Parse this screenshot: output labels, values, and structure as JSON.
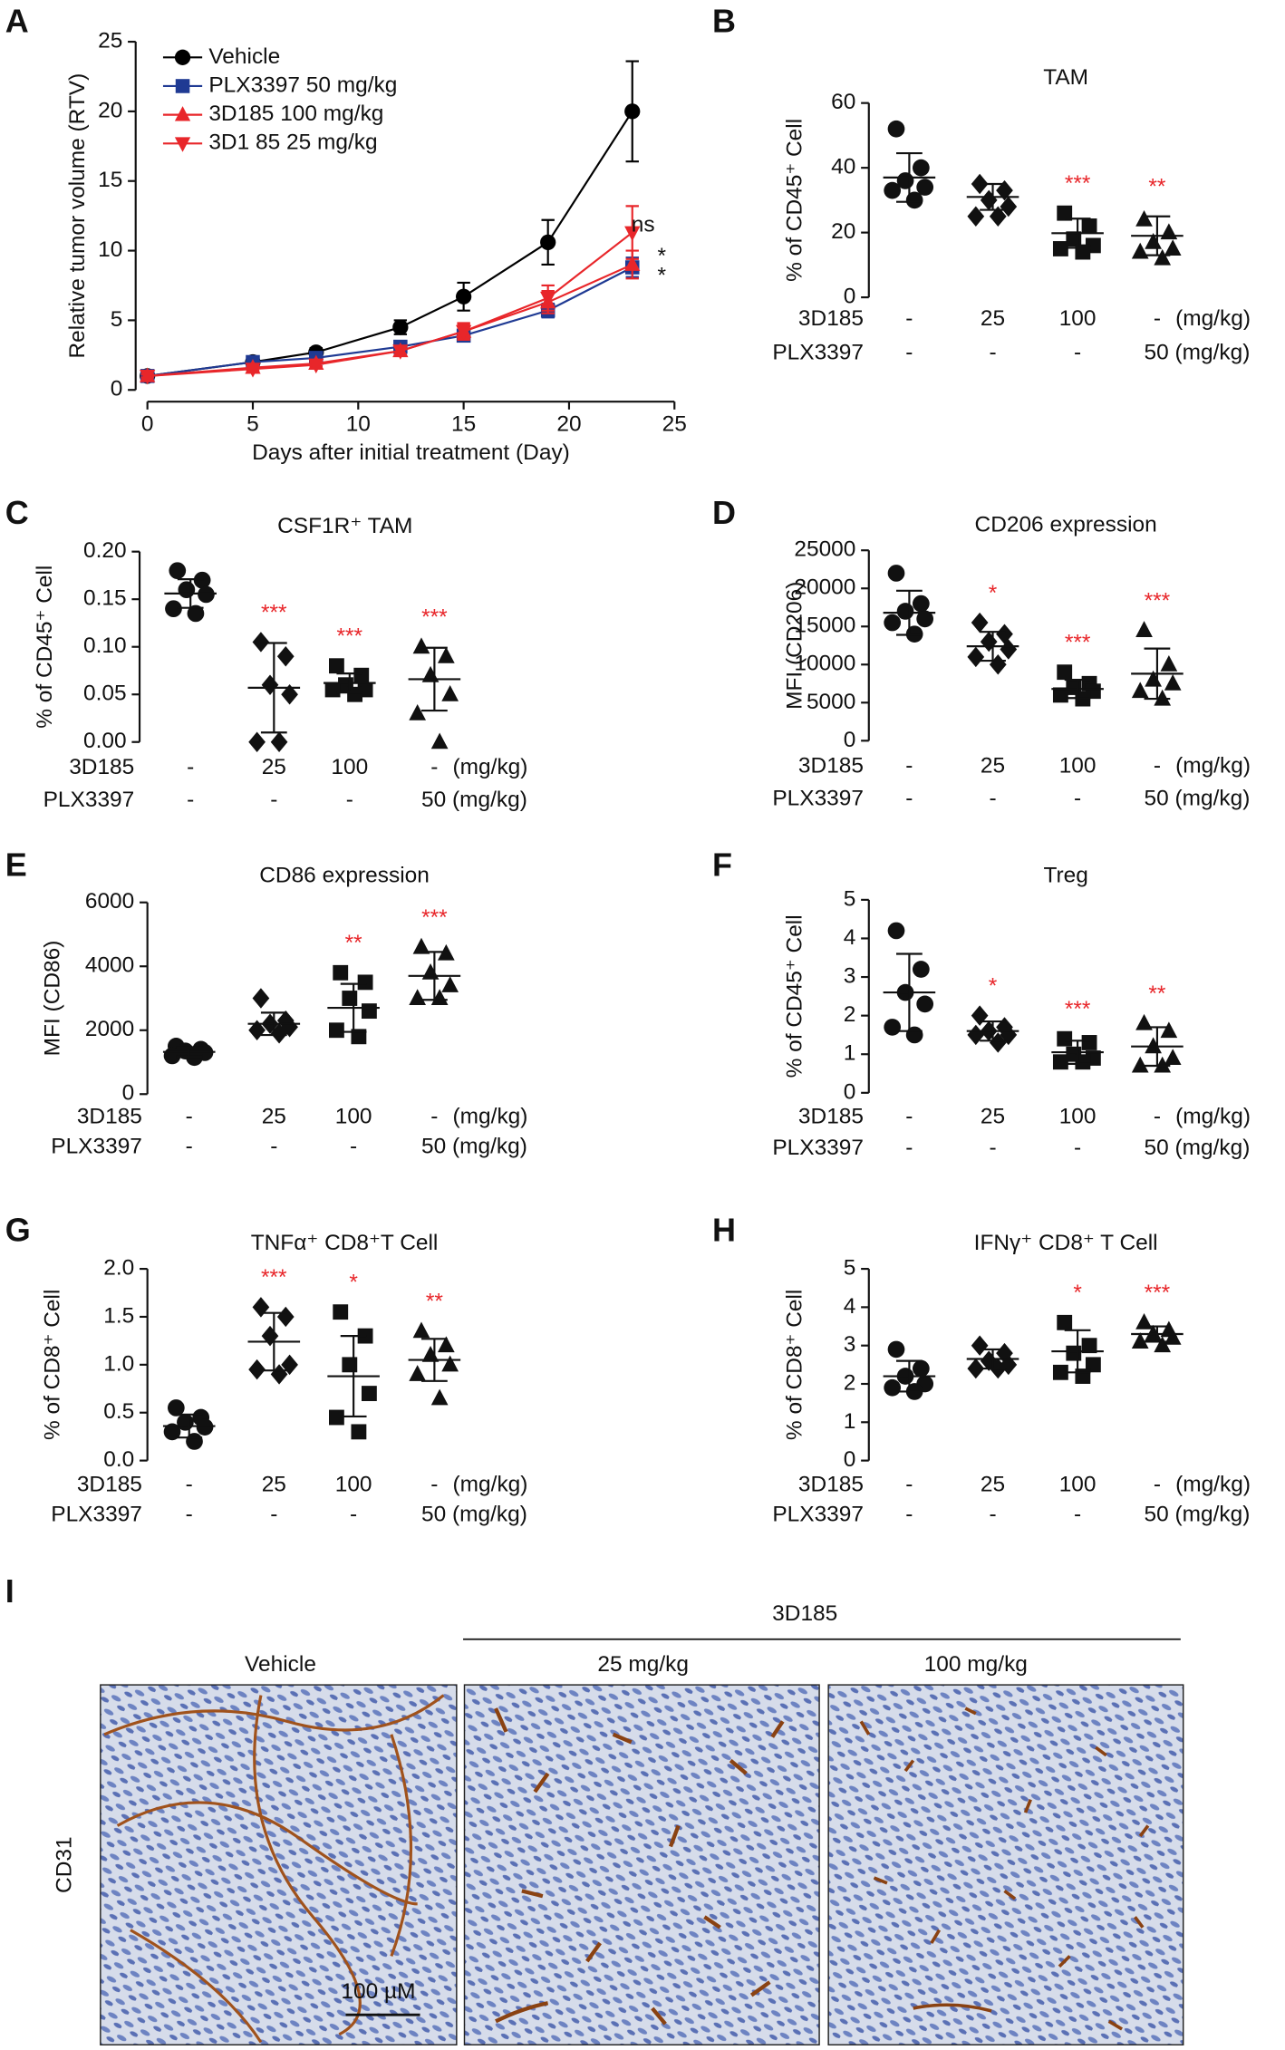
{
  "chart_data": [
    {
      "type": "line",
      "panel": "A",
      "ylabel": "Relative tumor volume (RTV)",
      "xlabel": "Days after initial treatment (Day)",
      "x": [
        0,
        5,
        8,
        12,
        15,
        19,
        23
      ],
      "xlim": [
        0,
        25
      ],
      "xticks": [
        0,
        5,
        10,
        15,
        20,
        25
      ],
      "ylim": [
        0,
        25
      ],
      "yticks": [
        0,
        5,
        10,
        15,
        20,
        25
      ],
      "series": [
        {
          "name": "Vehicle",
          "color": "#000000",
          "marker": "circle",
          "values": [
            1,
            2.0,
            2.7,
            4.5,
            6.7,
            10.6,
            20.0
          ],
          "errors": [
            0.1,
            0.3,
            0.3,
            0.5,
            1.0,
            1.6,
            3.6
          ]
        },
        {
          "name": "PLX3397 50 mg/kg",
          "color": "#1f3a93",
          "marker": "square",
          "values": [
            1,
            2.0,
            2.3,
            3.1,
            3.9,
            5.7,
            8.8
          ],
          "errors": [
            0.1,
            0.2,
            0.3,
            0.3,
            0.4,
            0.5,
            0.7
          ]
        },
        {
          "name": "3D185 100 mg/kg",
          "color": "#e8262a",
          "marker": "tri-up",
          "values": [
            1,
            1.6,
            1.9,
            2.8,
            4.2,
            6.3,
            9.0
          ],
          "errors": [
            0.1,
            0.2,
            0.2,
            0.3,
            0.5,
            0.8,
            1.0
          ]
        },
        {
          "name": "3D1 85 25 mg/kg",
          "color": "#e8262a",
          "marker": "tri-down",
          "values": [
            1,
            1.5,
            1.8,
            2.8,
            4.2,
            6.6,
            11.3
          ],
          "errors": [
            0.1,
            0.2,
            0.2,
            0.3,
            0.6,
            0.9,
            1.9
          ]
        }
      ],
      "annotations": [
        "ns",
        "*",
        "*"
      ]
    },
    {
      "type": "dot",
      "panel": "B",
      "title": "TAM",
      "ylabel": "% of CD45⁺ Cell",
      "ylim": [
        0,
        60
      ],
      "yticks": [
        0,
        20,
        40,
        60
      ],
      "star_color": "#e8262a",
      "groups": [
        {
          "marker": "circle",
          "values": [
            52,
            40,
            36,
            34,
            33,
            30
          ],
          "mean": 37,
          "sd": 7.5,
          "stars": null
        },
        {
          "marker": "diamond",
          "values": [
            35,
            33,
            30,
            28,
            25,
            25
          ],
          "mean": 31,
          "sd": 4,
          "stars": null
        },
        {
          "marker": "square",
          "values": [
            26,
            22,
            18,
            16,
            15,
            14
          ],
          "mean": 19.8,
          "sd": 4.5,
          "stars": "***"
        },
        {
          "marker": "tri-up",
          "values": [
            24,
            20,
            17,
            15,
            14,
            12
          ],
          "mean": 19,
          "sd": 6,
          "stars": "**"
        }
      ],
      "rows": [
        {
          "label": "3D185",
          "cells": [
            "-",
            "25",
            "100",
            "-"
          ],
          "unit": "(mg/kg)"
        },
        {
          "label": "PLX3397",
          "cells": [
            "-",
            "-",
            "-",
            "50 (mg/kg)"
          ]
        }
      ]
    },
    {
      "type": "dot",
      "panel": "C",
      "title": "CSF1R⁺ TAM",
      "ylabel": "% of CD45⁺ Cell",
      "ylim": [
        0,
        0.2
      ],
      "yticks": [
        {
          "value": 0,
          "label": "0.00"
        },
        {
          "value": 0.05,
          "label": "0.05"
        },
        {
          "value": 0.1,
          "label": "0.10"
        },
        {
          "value": 0.15,
          "label": "0.15"
        },
        {
          "value": 0.2,
          "label": "0.20"
        }
      ],
      "star_color": "#e8262a",
      "groups": [
        {
          "marker": "circle",
          "values": [
            0.18,
            0.17,
            0.16,
            0.155,
            0.14,
            0.135
          ],
          "mean": 0.156,
          "sd": 0.015,
          "stars": null
        },
        {
          "marker": "diamond",
          "values": [
            0.105,
            0.09,
            0.06,
            0.05,
            0,
            0
          ],
          "mean": 0.057,
          "sd": 0.047,
          "stars": "***"
        },
        {
          "marker": "square",
          "values": [
            0.08,
            0.07,
            0.06,
            0.055,
            0.055,
            0.05
          ],
          "mean": 0.062,
          "sd": 0.01,
          "stars": "***"
        },
        {
          "marker": "tri-up",
          "values": [
            0.1,
            0.09,
            0.07,
            0.05,
            0.03,
            0.0
          ],
          "mean": 0.066,
          "sd": 0.033,
          "stars": "***"
        }
      ],
      "rows": [
        {
          "label": "3D185",
          "cells": [
            "-",
            "25",
            "100",
            "-"
          ],
          "unit": "(mg/kg)"
        },
        {
          "label": "PLX3397",
          "cells": [
            "-",
            "-",
            "-",
            "50 (mg/kg)"
          ]
        }
      ]
    },
    {
      "type": "dot",
      "panel": "D",
      "title": "CD206 expression",
      "ylabel": "MFI (CD206)",
      "ylim": [
        0,
        25000
      ],
      "yticks": [
        0,
        5000,
        10000,
        15000,
        20000,
        25000
      ],
      "star_color": "#e8262a",
      "groups": [
        {
          "marker": "circle",
          "values": [
            22000,
            18000,
            17000,
            16000,
            15500,
            14000
          ],
          "mean": 16800,
          "sd": 2900,
          "stars": null
        },
        {
          "marker": "diamond",
          "values": [
            15500,
            14000,
            13000,
            12000,
            11000,
            10000
          ],
          "mean": 12400,
          "sd": 1900,
          "stars": "*"
        },
        {
          "marker": "square",
          "values": [
            9000,
            7500,
            7000,
            6500,
            6000,
            5500
          ],
          "mean": 6800,
          "sd": 1200,
          "stars": "***"
        },
        {
          "marker": "tri-up",
          "values": [
            14500,
            10000,
            8000,
            7500,
            6500,
            5500
          ],
          "mean": 8800,
          "sd": 3300,
          "stars": "***"
        }
      ],
      "rows": [
        {
          "label": "3D185",
          "cells": [
            "-",
            "25",
            "100",
            "-"
          ],
          "unit": "(mg/kg)"
        },
        {
          "label": "PLX3397",
          "cells": [
            "-",
            "-",
            "-",
            "50 (mg/kg)"
          ]
        }
      ]
    },
    {
      "type": "dot",
      "panel": "E",
      "title": "CD86 expression",
      "ylabel": "MFI (CD86)",
      "ylim": [
        0,
        6000
      ],
      "yticks": [
        0,
        2000,
        4000,
        6000
      ],
      "star_color": "#e8262a",
      "groups": [
        {
          "marker": "circle",
          "values": [
            1500,
            1400,
            1350,
            1300,
            1200,
            1150
          ],
          "mean": 1320,
          "sd": 150,
          "stars": null
        },
        {
          "marker": "diamond",
          "values": [
            3000,
            2300,
            2200,
            2100,
            2000,
            1900
          ],
          "mean": 2200,
          "sd": 350,
          "stars": null
        },
        {
          "marker": "square",
          "values": [
            3800,
            3500,
            3000,
            2600,
            2000,
            1800
          ],
          "mean": 2700,
          "sd": 750,
          "stars": "**"
        },
        {
          "marker": "tri-up",
          "values": [
            4600,
            4400,
            3800,
            3400,
            3000,
            3000
          ],
          "mean": 3700,
          "sd": 750,
          "stars": "***"
        }
      ],
      "rows": [
        {
          "label": "3D185",
          "cells": [
            "-",
            "25",
            "100",
            "-"
          ],
          "unit": "(mg/kg)"
        },
        {
          "label": "PLX3397",
          "cells": [
            "-",
            "-",
            "-",
            "50 (mg/kg)"
          ]
        }
      ]
    },
    {
      "type": "dot",
      "panel": "F",
      "title": "Treg",
      "ylabel": "% of CD45⁺ Cell",
      "ylim": [
        0,
        5
      ],
      "yticks": [
        0,
        1,
        2,
        3,
        4,
        5
      ],
      "star_color": "#e8262a",
      "groups": [
        {
          "marker": "circle",
          "values": [
            4.2,
            3.2,
            2.6,
            2.3,
            1.7,
            1.5
          ],
          "mean": 2.6,
          "sd": 1.0,
          "stars": null
        },
        {
          "marker": "diamond",
          "values": [
            2.0,
            1.7,
            1.6,
            1.5,
            1.5,
            1.3
          ],
          "mean": 1.6,
          "sd": 0.25,
          "stars": "*"
        },
        {
          "marker": "square",
          "values": [
            1.4,
            1.3,
            1.0,
            0.9,
            0.8,
            0.8
          ],
          "mean": 1.05,
          "sd": 0.3,
          "stars": "***"
        },
        {
          "marker": "tri-up",
          "values": [
            1.8,
            1.6,
            1.2,
            0.9,
            0.7,
            0.7
          ],
          "mean": 1.2,
          "sd": 0.5,
          "stars": "**"
        }
      ],
      "rows": [
        {
          "label": "3D185",
          "cells": [
            "-",
            "25",
            "100",
            "-"
          ],
          "unit": "(mg/kg)"
        },
        {
          "label": "PLX3397",
          "cells": [
            "-",
            "-",
            "-",
            "50 (mg/kg)"
          ]
        }
      ]
    },
    {
      "type": "dot",
      "panel": "G",
      "title": "TNFα⁺ CD8⁺T Cell",
      "ylabel": "% of CD8⁺ Cell",
      "ylim": [
        0,
        2
      ],
      "yticks": [
        {
          "value": 0,
          "label": "0.0"
        },
        {
          "value": 0.5,
          "label": "0.5"
        },
        {
          "value": 1,
          "label": "1.0"
        },
        {
          "value": 1.5,
          "label": "1.5"
        },
        {
          "value": 2,
          "label": "2.0"
        }
      ],
      "star_color": "#e8262a",
      "groups": [
        {
          "marker": "circle",
          "values": [
            0.55,
            0.45,
            0.4,
            0.35,
            0.3,
            0.2
          ],
          "mean": 0.36,
          "sd": 0.12,
          "stars": null
        },
        {
          "marker": "diamond",
          "values": [
            1.6,
            1.5,
            1.3,
            1.0,
            0.95,
            0.9
          ],
          "mean": 1.24,
          "sd": 0.3,
          "stars": "***"
        },
        {
          "marker": "square",
          "values": [
            1.55,
            1.3,
            1.0,
            0.7,
            0.45,
            0.3
          ],
          "mean": 0.88,
          "sd": 0.42,
          "stars": "*"
        },
        {
          "marker": "tri-up",
          "values": [
            1.35,
            1.2,
            1.1,
            1.0,
            0.9,
            0.65
          ],
          "mean": 1.05,
          "sd": 0.22,
          "stars": "**"
        }
      ],
      "rows": [
        {
          "label": "3D185",
          "cells": [
            "-",
            "25",
            "100",
            "-"
          ],
          "unit": "(mg/kg)"
        },
        {
          "label": "PLX3397",
          "cells": [
            "-",
            "-",
            "-",
            "50 (mg/kg)"
          ]
        }
      ]
    },
    {
      "type": "dot",
      "panel": "H",
      "title": "IFNγ⁺ CD8⁺ T Cell",
      "ylabel": "% of CD8⁺ Cell",
      "ylim": [
        0,
        5
      ],
      "yticks": [
        0,
        1,
        2,
        3,
        4,
        5
      ],
      "star_color": "#e8262a",
      "groups": [
        {
          "marker": "circle",
          "values": [
            2.9,
            2.4,
            2.2,
            2.0,
            1.9,
            1.8
          ],
          "mean": 2.2,
          "sd": 0.4,
          "stars": null
        },
        {
          "marker": "diamond",
          "values": [
            3.0,
            2.8,
            2.6,
            2.5,
            2.4,
            2.4
          ],
          "mean": 2.65,
          "sd": 0.25,
          "stars": null
        },
        {
          "marker": "square",
          "values": [
            3.6,
            3.0,
            2.8,
            2.5,
            2.3,
            2.2
          ],
          "mean": 2.85,
          "sd": 0.55,
          "stars": "*"
        },
        {
          "marker": "tri-up",
          "values": [
            3.6,
            3.4,
            3.3,
            3.2,
            3.1,
            3.0
          ],
          "mean": 3.3,
          "sd": 0.2,
          "stars": "***"
        }
      ],
      "rows": [
        {
          "label": "3D185",
          "cells": [
            "-",
            "25",
            "100",
            "-"
          ],
          "unit": "(mg/kg)"
        },
        {
          "label": "PLX3397",
          "cells": [
            "-",
            "-",
            "-",
            "50 (mg/kg)"
          ]
        }
      ]
    }
  ],
  "panel_i": {
    "panel": "I",
    "group_label": "3D185",
    "columns": [
      "Vehicle",
      "25 mg/kg",
      "100 mg/kg"
    ],
    "row_label": "CD31",
    "scale_bar": "100 µM"
  }
}
